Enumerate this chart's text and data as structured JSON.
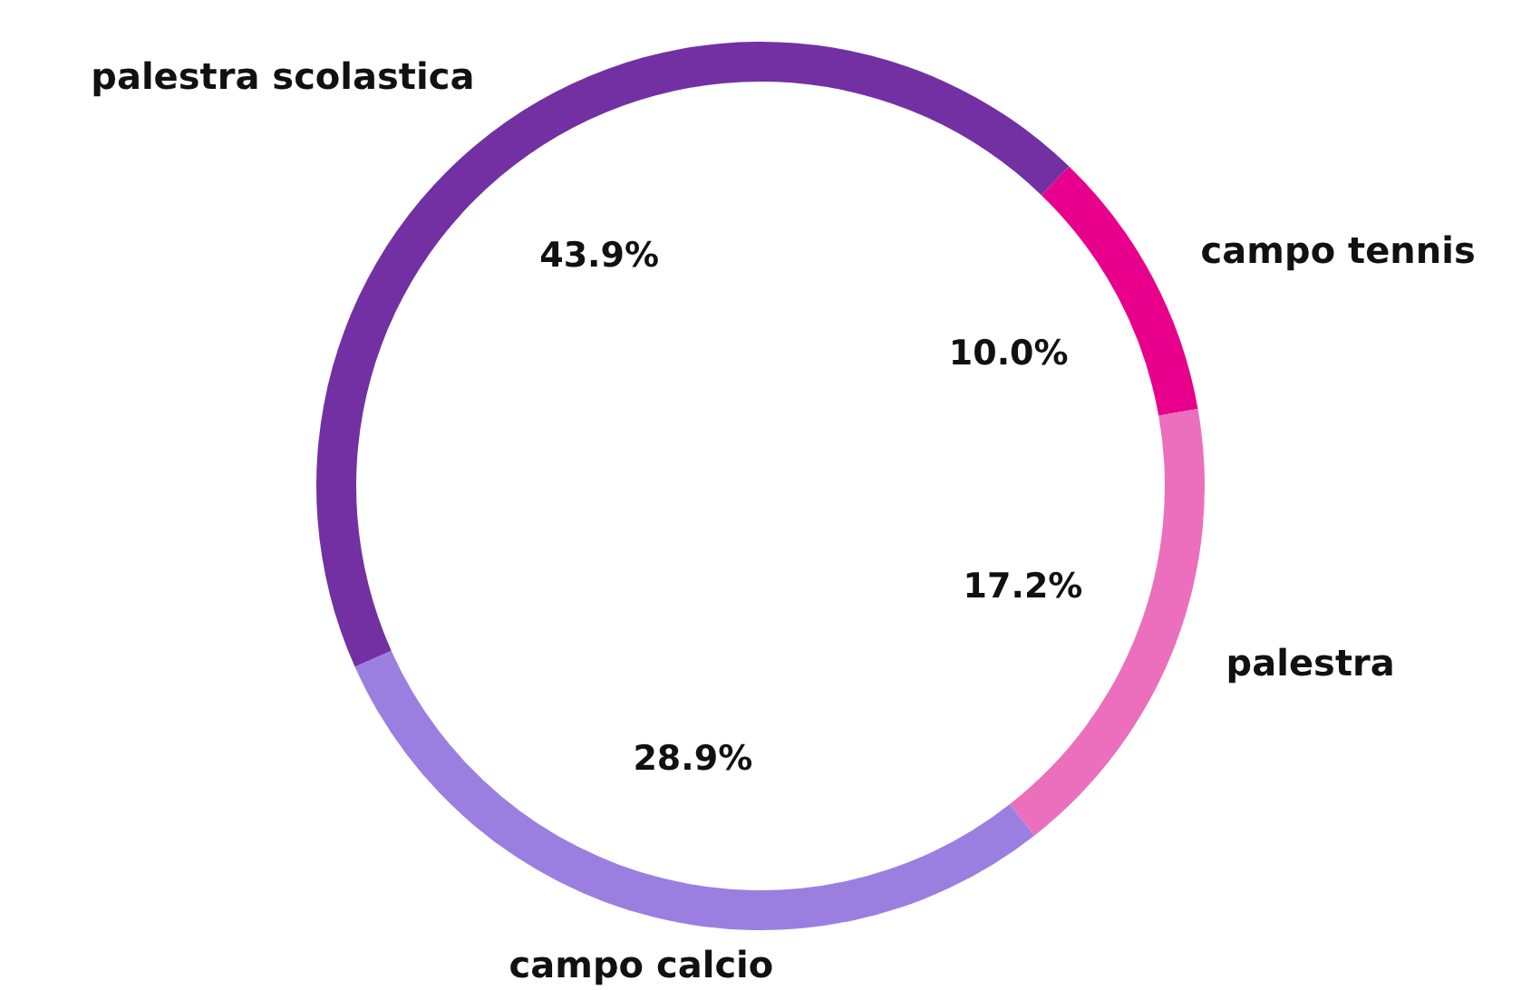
{
  "chart_data": {
    "type": "donut",
    "categories": [
      "campo tennis",
      "palestra",
      "campo calcio",
      "palestra scolastica"
    ],
    "values": [
      10.0,
      17.2,
      28.9,
      43.9
    ],
    "colors": [
      "#e8008c",
      "#ec6fbe",
      "#9b7fe0",
      "#7330a3"
    ],
    "value_labels": [
      "10.0%",
      "17.2%",
      "28.9%",
      "43.9%"
    ]
  }
}
